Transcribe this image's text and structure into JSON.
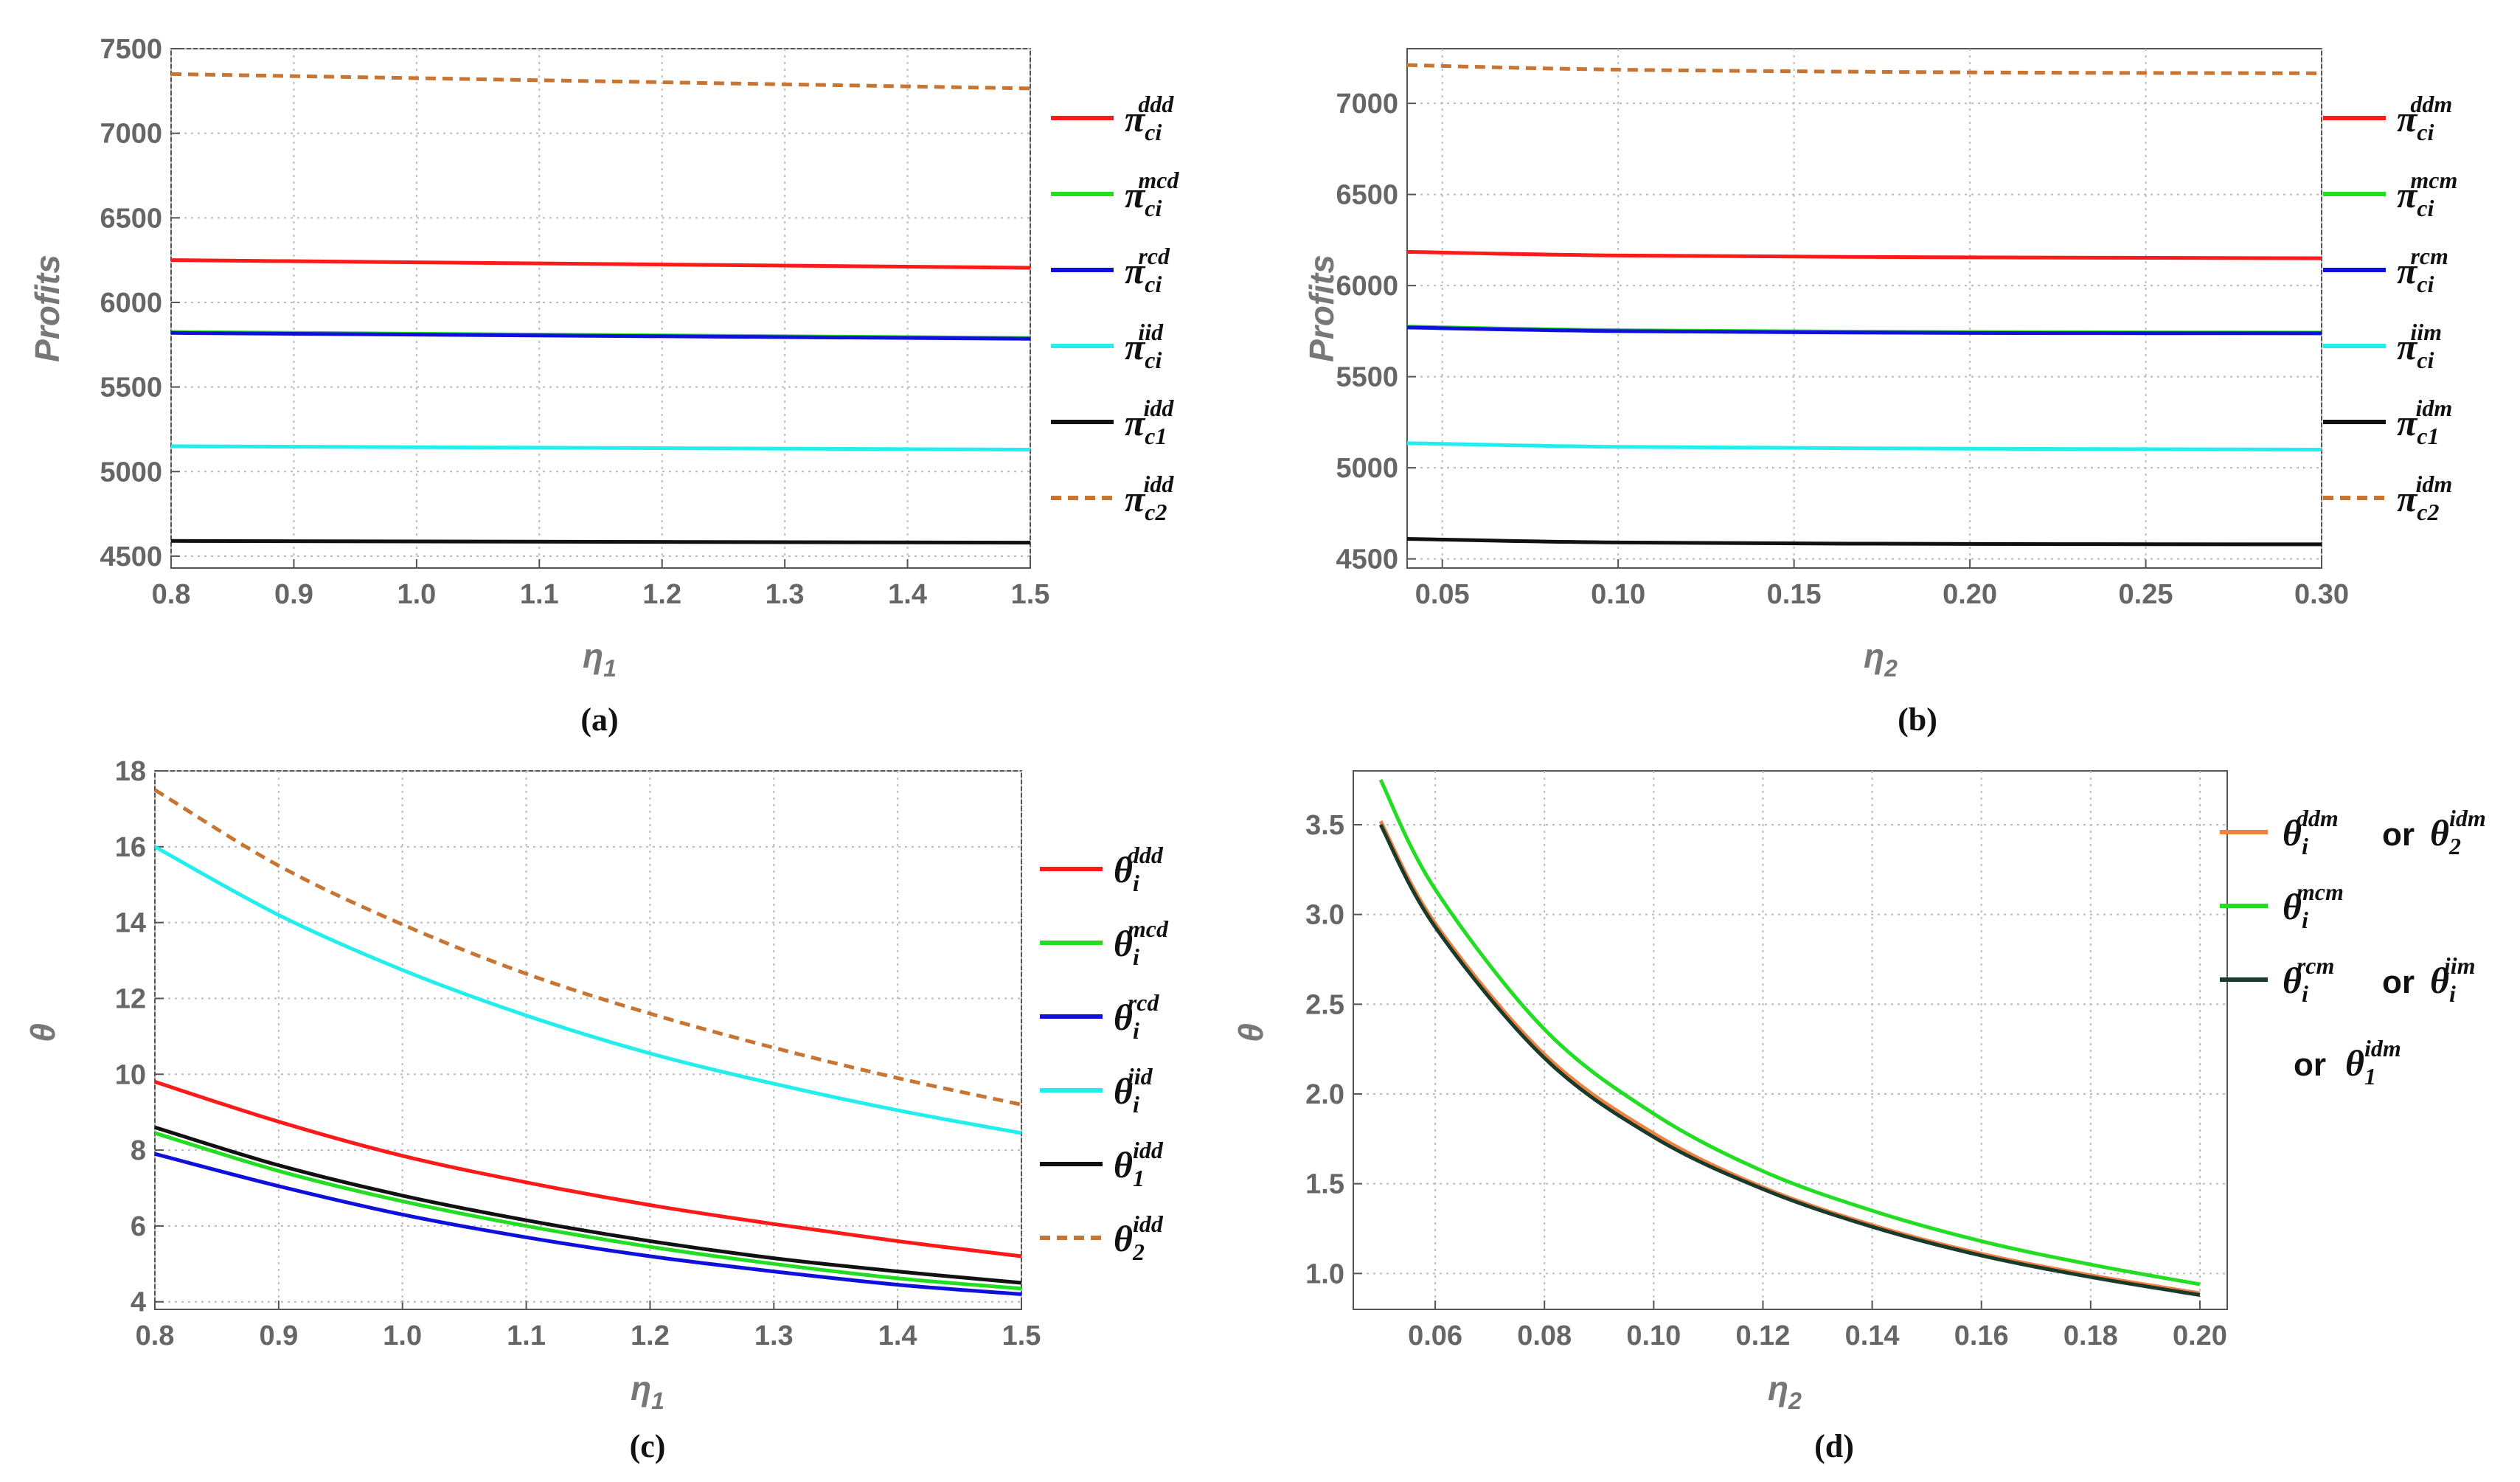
{
  "chart_data": [
    {
      "id": "a",
      "type": "line",
      "caption": "(a)",
      "xlabel": "η1",
      "ylabel": "Profits",
      "xlim": [
        0.8,
        1.5
      ],
      "ylim": [
        4430,
        7500
      ],
      "xticks": [
        "0.8",
        "0.9",
        "1.0",
        "1.1",
        "1.2",
        "1.3",
        "1.4",
        "1.5"
      ],
      "xtick_values": [
        0.8,
        0.9,
        1.0,
        1.1,
        1.2,
        1.3,
        1.4,
        1.5
      ],
      "yticks": [
        "4500",
        "5000",
        "5500",
        "6000",
        "6500",
        "7000",
        "7500"
      ],
      "ytick_values": [
        4500,
        5000,
        5500,
        6000,
        6500,
        7000,
        7500
      ],
      "grid": true,
      "legend_position": "right",
      "series": [
        {
          "sym": "π",
          "sub": "ci",
          "sup": "ddd",
          "color": "#ff1a1a",
          "dash": false,
          "x": [
            0.8,
            1.5
          ],
          "y": [
            6250,
            6205
          ]
        },
        {
          "sym": "π",
          "sub": "ci",
          "sup": "mcd",
          "color": "#22dd22",
          "dash": false,
          "x": [
            0.8,
            1.5
          ],
          "y": [
            5825,
            5790
          ]
        },
        {
          "sym": "π",
          "sub": "ci",
          "sup": "rcd",
          "color": "#1010dd",
          "dash": false,
          "x": [
            0.8,
            1.5
          ],
          "y": [
            5820,
            5785
          ]
        },
        {
          "sym": "π",
          "sub": "ci",
          "sup": "iid",
          "color": "#22eeee",
          "dash": false,
          "x": [
            0.8,
            1.5
          ],
          "y": [
            5150,
            5130
          ]
        },
        {
          "sym": "π",
          "sub": "c1",
          "sup": "idd",
          "color": "#111111",
          "dash": false,
          "x": [
            0.8,
            1.5
          ],
          "y": [
            4590,
            4580
          ]
        },
        {
          "sym": "π",
          "sub": "c2",
          "sup": "idd",
          "color": "#c87533",
          "dash": true,
          "x": [
            0.8,
            1.5
          ],
          "y": [
            7350,
            7265
          ]
        }
      ]
    },
    {
      "id": "b",
      "type": "line",
      "caption": "(b)",
      "xlabel": "η2",
      "ylabel": "Profits",
      "xlim": [
        0.04,
        0.3
      ],
      "ylim": [
        4450,
        7300
      ],
      "xticks": [
        "0.05",
        "0.10",
        "0.15",
        "0.20",
        "0.25",
        "0.30"
      ],
      "xtick_values": [
        0.05,
        0.1,
        0.15,
        0.2,
        0.25,
        0.3
      ],
      "yticks": [
        "4500",
        "5000",
        "5500",
        "6000",
        "6500",
        "7000"
      ],
      "ytick_values": [
        4500,
        5000,
        5500,
        6000,
        6500,
        7000
      ],
      "grid": true,
      "legend_position": "right",
      "series": [
        {
          "sym": "π",
          "sub": "ci",
          "sup": "ddm",
          "color": "#ff1a1a",
          "dash": false,
          "x": [
            0.04,
            0.1,
            0.2,
            0.3
          ],
          "y": [
            6185,
            6165,
            6155,
            6150
          ]
        },
        {
          "sym": "π",
          "sub": "ci",
          "sup": "mcm",
          "color": "#22dd22",
          "dash": false,
          "x": [
            0.04,
            0.1,
            0.2,
            0.3
          ],
          "y": [
            5775,
            5755,
            5745,
            5742
          ]
        },
        {
          "sym": "π",
          "sub": "ci",
          "sup": "rcm",
          "color": "#1010dd",
          "dash": false,
          "x": [
            0.04,
            0.1,
            0.2,
            0.3
          ],
          "y": [
            5770,
            5750,
            5740,
            5738
          ]
        },
        {
          "sym": "π",
          "sub": "ci",
          "sup": "iim",
          "color": "#22eeee",
          "dash": false,
          "x": [
            0.04,
            0.1,
            0.2,
            0.3
          ],
          "y": [
            5135,
            5115,
            5105,
            5100
          ]
        },
        {
          "sym": "π",
          "sub": "c1",
          "sup": "idm",
          "color": "#111111",
          "dash": false,
          "x": [
            0.04,
            0.1,
            0.2,
            0.3
          ],
          "y": [
            4610,
            4590,
            4582,
            4580
          ]
        },
        {
          "sym": "π",
          "sub": "c2",
          "sup": "idm",
          "color": "#c87533",
          "dash": true,
          "x": [
            0.04,
            0.1,
            0.2,
            0.3
          ],
          "y": [
            7210,
            7185,
            7170,
            7165
          ]
        }
      ]
    },
    {
      "id": "c",
      "type": "line",
      "caption": "(c)",
      "xlabel": "η1",
      "ylabel": "θ",
      "xlim": [
        0.8,
        1.5
      ],
      "ylim": [
        3.8,
        18
      ],
      "xticks": [
        "0.8",
        "0.9",
        "1.0",
        "1.1",
        "1.2",
        "1.3",
        "1.4",
        "1.5"
      ],
      "xtick_values": [
        0.8,
        0.9,
        1.0,
        1.1,
        1.2,
        1.3,
        1.4,
        1.5
      ],
      "yticks": [
        "4",
        "6",
        "8",
        "10",
        "12",
        "14",
        "16",
        "18"
      ],
      "ytick_values": [
        4,
        6,
        8,
        10,
        12,
        14,
        16,
        18
      ],
      "grid": true,
      "legend_position": "right",
      "series": [
        {
          "sym": "θ",
          "sub": "i",
          "sup": "ddd",
          "color": "#ff1a1a",
          "dash": false,
          "x": [
            0.8,
            0.9,
            1.0,
            1.1,
            1.2,
            1.3,
            1.4,
            1.5
          ],
          "y": [
            9.8,
            8.75,
            7.85,
            7.15,
            6.55,
            6.05,
            5.6,
            5.2
          ]
        },
        {
          "sym": "θ",
          "sub": "i",
          "sup": "mcd",
          "color": "#22dd22",
          "dash": false,
          "x": [
            0.8,
            0.9,
            1.0,
            1.1,
            1.2,
            1.3,
            1.4,
            1.5
          ],
          "y": [
            8.45,
            7.45,
            6.65,
            6.0,
            5.45,
            5.0,
            4.62,
            4.35
          ]
        },
        {
          "sym": "θ",
          "sub": "i",
          "sup": "rcd",
          "color": "#1010dd",
          "dash": false,
          "x": [
            0.8,
            0.9,
            1.0,
            1.1,
            1.2,
            1.3,
            1.4,
            1.5
          ],
          "y": [
            7.9,
            7.05,
            6.3,
            5.7,
            5.2,
            4.8,
            4.45,
            4.2
          ]
        },
        {
          "sym": "θ",
          "sub": "i",
          "sup": "iid",
          "color": "#22eeee",
          "dash": false,
          "x": [
            0.8,
            0.9,
            1.0,
            1.1,
            1.2,
            1.3,
            1.4,
            1.5
          ],
          "y": [
            16.0,
            14.2,
            12.75,
            11.55,
            10.55,
            9.75,
            9.05,
            8.45
          ]
        },
        {
          "sym": "θ",
          "sub": "1",
          "sup": "idd",
          "color": "#111111",
          "dash": false,
          "x": [
            0.8,
            0.9,
            1.0,
            1.1,
            1.2,
            1.3,
            1.4,
            1.5
          ],
          "y": [
            8.6,
            7.6,
            6.8,
            6.15,
            5.6,
            5.15,
            4.8,
            4.5
          ]
        },
        {
          "sym": "θ",
          "sub": "2",
          "sup": "idd",
          "color": "#c87533",
          "dash": true,
          "x": [
            0.8,
            0.9,
            1.0,
            1.1,
            1.2,
            1.3,
            1.4,
            1.5
          ],
          "y": [
            17.5,
            15.5,
            13.95,
            12.65,
            11.6,
            10.7,
            9.9,
            9.2
          ]
        }
      ]
    },
    {
      "id": "d",
      "type": "line",
      "caption": "(d)",
      "xlabel": "η2",
      "ylabel": "θ",
      "xlim": [
        0.045,
        0.205
      ],
      "ylim": [
        0.8,
        3.8
      ],
      "xticks": [
        "0.06",
        "0.08",
        "0.10",
        "0.12",
        "0.14",
        "0.16",
        "0.18",
        "0.20"
      ],
      "xtick_values": [
        0.06,
        0.08,
        0.1,
        0.12,
        0.14,
        0.16,
        0.18,
        0.2
      ],
      "yticks": [
        "1.0",
        "1.5",
        "2.0",
        "2.5",
        "3.0",
        "3.5"
      ],
      "ytick_values": [
        1.0,
        1.5,
        2.0,
        2.5,
        3.0,
        3.5
      ],
      "grid": true,
      "legend_position": "right",
      "series": [
        {
          "label": "θ_i^ddm or θ_2^idm",
          "color": "#f08040",
          "dash": false,
          "x": [
            0.05,
            0.06,
            0.08,
            0.1,
            0.12,
            0.14,
            0.16,
            0.18,
            0.2
          ],
          "y": [
            3.52,
            2.95,
            2.22,
            1.78,
            1.48,
            1.27,
            1.11,
            0.99,
            0.89
          ]
        },
        {
          "label": "θ_i^mcm",
          "color": "#22dd22",
          "dash": false,
          "x": [
            0.05,
            0.06,
            0.08,
            0.1,
            0.12,
            0.14,
            0.16,
            0.18,
            0.2
          ],
          "y": [
            3.75,
            3.14,
            2.36,
            1.89,
            1.57,
            1.35,
            1.18,
            1.05,
            0.94
          ]
        },
        {
          "label": "θ_i^rcm or θ_i^iim or θ_1^idm",
          "color": "#1a3a2a",
          "dash": false,
          "x": [
            0.05,
            0.06,
            0.08,
            0.1,
            0.12,
            0.14,
            0.16,
            0.18,
            0.2
          ],
          "y": [
            3.5,
            2.93,
            2.2,
            1.76,
            1.47,
            1.26,
            1.1,
            0.98,
            0.88
          ]
        }
      ],
      "legend_text": {
        "line1_a_sym": "θ",
        "line1_a_sub": "i",
        "line1_a_sup": "ddm",
        "line1_or": "or",
        "line1_b_sym": "θ",
        "line1_b_sub": "2",
        "line1_b_sup": "idm",
        "line2_sym": "θ",
        "line2_sub": "i",
        "line2_sup": "mcm",
        "line3_a_sym": "θ",
        "line3_a_sub": "i",
        "line3_a_sup": "rcm",
        "line3_or": "or",
        "line3_b_sym": "θ",
        "line3_b_sub": "i",
        "line3_b_sup": "iim",
        "line4_or": "or",
        "line4_sym": "θ",
        "line4_sub": "1",
        "line4_sup": "idm"
      }
    }
  ]
}
